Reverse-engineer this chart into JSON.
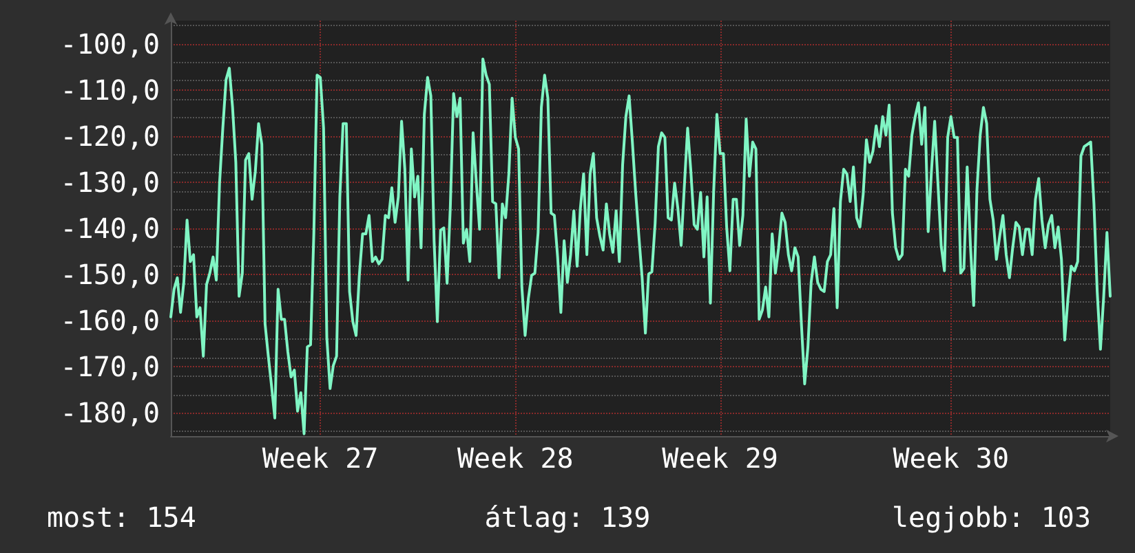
{
  "chart_data": {
    "type": "line",
    "annotations": [
      "most: 154",
      "átlag: 139",
      "legjobb: 103"
    ],
    "categories": [
      null,
      null,
      null,
      null,
      null,
      null,
      null,
      null,
      null,
      null,
      null,
      null,
      null,
      null,
      null,
      null,
      null,
      null,
      null,
      null,
      null,
      null,
      null,
      null,
      null,
      null,
      null,
      null,
      null,
      null,
      null,
      null,
      null,
      null,
      null,
      null,
      null,
      null,
      null,
      null,
      null,
      null,
      null,
      null,
      null,
      null,
      "Week 27",
      null,
      null,
      null,
      null,
      null,
      null,
      null,
      null,
      null,
      null,
      null,
      null,
      null,
      null,
      null,
      null,
      null,
      null,
      null,
      null,
      null,
      null,
      null,
      null,
      null,
      null,
      null,
      null,
      null,
      null,
      null,
      null,
      null,
      null,
      null,
      null,
      null,
      null,
      null,
      null,
      null,
      null,
      null,
      null,
      null,
      null,
      null,
      null,
      null,
      null,
      null,
      null,
      null,
      null,
      null,
      null,
      null,
      null,
      null,
      "Week 28",
      null,
      null,
      null,
      null,
      null,
      null,
      null,
      null,
      null,
      null,
      null,
      null,
      null,
      null,
      null,
      null,
      null,
      null,
      null,
      null,
      null,
      null,
      null,
      null,
      null,
      null,
      null,
      null,
      null,
      null,
      null,
      null,
      null,
      null,
      null,
      null,
      null,
      null,
      null,
      null,
      null,
      null,
      null,
      null,
      null,
      null,
      null,
      null,
      null,
      null,
      null,
      null,
      null,
      null,
      null,
      null,
      null,
      null,
      null,
      null,
      null,
      null,
      "Week 29",
      null,
      null,
      null,
      null,
      null,
      null,
      null,
      null,
      null,
      null,
      null,
      null,
      null,
      null,
      null,
      null,
      null,
      null,
      null,
      null,
      null,
      null,
      null,
      null,
      null,
      null,
      null,
      null,
      null,
      null,
      null,
      null,
      null,
      null,
      null,
      null,
      null,
      null,
      null,
      null,
      null,
      null,
      null,
      null,
      null,
      null,
      null,
      null,
      null,
      null,
      null,
      null,
      null,
      null,
      null,
      null,
      null,
      null,
      null,
      null,
      null,
      null,
      null,
      null,
      null,
      null,
      null,
      null,
      null,
      null,
      "Week 30",
      null,
      null,
      null,
      null,
      null,
      null,
      null,
      null,
      null,
      null,
      null,
      null,
      null,
      null,
      null,
      null,
      null,
      null,
      null,
      null,
      null,
      null,
      null,
      null,
      null,
      null,
      null,
      null,
      null,
      null,
      null,
      null,
      null,
      null,
      null,
      null,
      null,
      null,
      null,
      null,
      null,
      null,
      null,
      null,
      null,
      null,
      null,
      null,
      null
    ],
    "series": [
      {
        "color": "#80f5c4",
        "values": [
          -159.2,
          -153.2,
          -150.7,
          -158.2,
          -151.7,
          -138.2,
          -147.2,
          -145.7,
          -159.2,
          -157.2,
          -167.7,
          -152.2,
          -149.7,
          -146.2,
          -151.2,
          -130.2,
          -118.3,
          -107.8,
          -105.3,
          -113.8,
          -125.7,
          -154.7,
          -149.7,
          -125.2,
          -123.8,
          -133.7,
          -127.7,
          -117.3,
          -121.8,
          -160.7,
          -167.7,
          -174.2,
          -181.1,
          -153.2,
          -159.7,
          -159.7,
          -166.7,
          -172.2,
          -170.7,
          -179.6,
          -175.6,
          -184.5,
          -165.7,
          -165.2,
          -141.2,
          -106.8,
          -107.3,
          -118.3,
          -163.7,
          -174.7,
          -169.7,
          -167.7,
          -133.2,
          -117.3,
          -117.3,
          -153.7,
          -160.2,
          -163.2,
          -150.2,
          -141.2,
          -141.2,
          -137.2,
          -147.2,
          -146.2,
          -147.7,
          -146.7,
          -137.2,
          -137.7,
          -131.2,
          -138.7,
          -133.2,
          -116.8,
          -127.2,
          -151.2,
          -122.8,
          -133.2,
          -128.7,
          -144.2,
          -115.3,
          -107.3,
          -111.3,
          -142.7,
          -160.2,
          -140.4,
          -139.9,
          -151.9,
          -135.2,
          -110.8,
          -115.8,
          -111.8,
          -143.2,
          -140.2,
          -147.2,
          -119.3,
          -130.2,
          -140.2,
          -103.3,
          -106.8,
          -108.8,
          -134.2,
          -134.7,
          -150.7,
          -134.7,
          -137.7,
          -128.2,
          -111.8,
          -120.3,
          -122.8,
          -152.7,
          -163.2,
          -155.2,
          -150.2,
          -149.7,
          -140.9,
          -113.8,
          -106.8,
          -111.8,
          -136.7,
          -137.2,
          -146.2,
          -158.2,
          -142.7,
          -151.7,
          -145.7,
          -136.2,
          -148.2,
          -135.7,
          -128.2,
          -145.7,
          -128.2,
          -123.8,
          -137.7,
          -141.7,
          -144.7,
          -134.7,
          -141.2,
          -145.2,
          -136.2,
          -147.2,
          -126.2,
          -115.8,
          -111.3,
          -121.3,
          -132.2,
          -141.7,
          -150.7,
          -162.7,
          -149.9,
          -149.4,
          -138.9,
          -122.3,
          -119.3,
          -120.3,
          -137.7,
          -138.2,
          -130.2,
          -135.7,
          -143.7,
          -130.7,
          -118.3,
          -127.7,
          -139.2,
          -140.2,
          -132.2,
          -146.2,
          -133.2,
          -156.2,
          -132.2,
          -115.3,
          -123.8,
          -123.8,
          -139.7,
          -149.2,
          -133.7,
          -133.7,
          -143.7,
          -137.2,
          -116.3,
          -128.7,
          -121.3,
          -122.8,
          -159.7,
          -157.7,
          -152.7,
          -159.2,
          -141.2,
          -149.7,
          -144.2,
          -136.7,
          -138.7,
          -145.7,
          -149.2,
          -144.2,
          -146.2,
          -160.7,
          -173.7,
          -165.7,
          -151.7,
          -146.2,
          -151.7,
          -153.2,
          -153.7,
          -147.2,
          -145.7,
          -135.7,
          -157.2,
          -134.2,
          -127.2,
          -128.2,
          -134.2,
          -126.7,
          -137.7,
          -139.7,
          -132.7,
          -120.8,
          -125.7,
          -123.3,
          -117.8,
          -122.3,
          -115.8,
          -119.8,
          -113.3,
          -136.7,
          -144.2,
          -146.7,
          -145.7,
          -127.2,
          -128.7,
          -119.8,
          -115.8,
          -112.8,
          -121.8,
          -113.8,
          -140.7,
          -127.7,
          -116.8,
          -130.2,
          -143.7,
          -149.2,
          -120.3,
          -115.8,
          -120.3,
          -120.3,
          -149.7,
          -148.7,
          -126.7,
          -143.7,
          -156.7,
          -131.7,
          -119.8,
          -113.8,
          -117.3,
          -133.7,
          -138.2,
          -146.7,
          -141.7,
          -137.2,
          -145.7,
          -150.7,
          -144.2,
          -138.7,
          -139.7,
          -145.7,
          -140.2,
          -140.2,
          -145.7,
          -133.7,
          -129.2,
          -138.2,
          -144.2,
          -139.2,
          -137.2,
          -144.2,
          -139.7,
          -146.7,
          -164.2,
          -155.2,
          -148.2,
          -149.2,
          -147.2,
          -124.3,
          -122.3,
          -121.8,
          -121.3,
          -134.7,
          -153.7,
          -166.2,
          -154.7,
          -140.9,
          -154.7
        ]
      }
    ],
    "ylim": [
      -185,
      -95
    ],
    "yticks": [
      {
        "value": -100,
        "label": "-100,0"
      },
      {
        "value": -110,
        "label": "-110,0"
      },
      {
        "value": -120,
        "label": "-120,0"
      },
      {
        "value": -130,
        "label": "-130,0"
      },
      {
        "value": -140,
        "label": "-140,0"
      },
      {
        "value": -150,
        "label": "-150,0"
      },
      {
        "value": -160,
        "label": "-160,0"
      },
      {
        "value": -170,
        "label": "-170,0"
      },
      {
        "value": -180,
        "label": "-180,0"
      }
    ],
    "grid": true,
    "marker": "none",
    "line_style": "solid"
  }
}
